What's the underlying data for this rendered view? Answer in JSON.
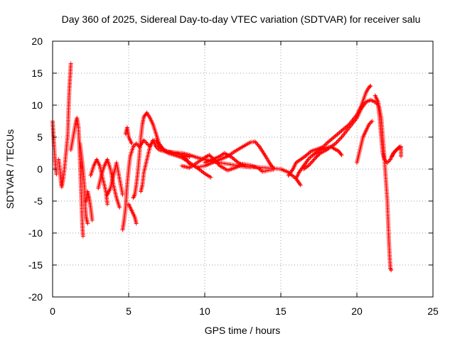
{
  "chart_data": {
    "type": "scatter",
    "title": "Day 360 of 2025, Sidereal Day-to-day VTEC variation (SDTVAR) for receiver salu",
    "xlabel": "GPS time / hours",
    "ylabel": "SDTVAR / TECUs",
    "xlim": [
      0,
      25
    ],
    "ylim": [
      -20,
      20
    ],
    "xticks": [
      0,
      5,
      10,
      15,
      20,
      25
    ],
    "yticks": [
      -20,
      -15,
      -10,
      -5,
      0,
      5,
      10,
      15,
      20
    ],
    "grid": true,
    "marker": "+",
    "series": [
      {
        "name": "SDTVAR",
        "color": "#ff0000",
        "tracks": [
          [
            [
              0.0,
              7.5
            ],
            [
              0.05,
              5.5
            ],
            [
              0.1,
              3.5
            ],
            [
              0.15,
              1.8
            ],
            [
              0.2,
              0.5
            ],
            [
              0.25,
              -0.8
            ]
          ],
          [
            [
              0.4,
              1.5
            ],
            [
              0.5,
              -0.5
            ],
            [
              0.55,
              -2.0
            ],
            [
              0.6,
              -2.8
            ],
            [
              0.7,
              -1.5
            ],
            [
              0.8,
              0.5
            ],
            [
              0.9,
              3.0
            ],
            [
              1.0,
              5.5
            ],
            [
              1.05,
              9.5
            ],
            [
              1.1,
              12.5
            ],
            [
              1.15,
              14.5
            ],
            [
              1.2,
              16.5
            ]
          ],
          [
            [
              1.2,
              3.0
            ],
            [
              1.35,
              5.0
            ],
            [
              1.5,
              7.0
            ],
            [
              1.6,
              8.0
            ],
            [
              1.7,
              6.5
            ],
            [
              1.75,
              4.0
            ],
            [
              1.8,
              1.5
            ],
            [
              1.85,
              -2.0
            ],
            [
              1.9,
              -5.0
            ],
            [
              1.95,
              -8.5
            ],
            [
              2.0,
              -10.5
            ]
          ],
          [
            [
              1.8,
              4.0
            ],
            [
              1.9,
              2.0
            ],
            [
              2.0,
              0.0
            ],
            [
              2.1,
              -3.0
            ],
            [
              2.15,
              -6.0
            ],
            [
              2.2,
              -7.5
            ],
            [
              2.3,
              -8.5
            ]
          ],
          [
            [
              2.2,
              -5.0
            ],
            [
              2.3,
              -3.5
            ],
            [
              2.4,
              -4.5
            ],
            [
              2.5,
              -6.0
            ],
            [
              2.6,
              -8.0
            ]
          ],
          [
            [
              2.5,
              -1.0
            ],
            [
              2.7,
              0.5
            ],
            [
              2.9,
              1.5
            ],
            [
              3.1,
              0.5
            ],
            [
              3.3,
              -1.5
            ],
            [
              3.5,
              -3.5
            ],
            [
              3.6,
              -5.5
            ]
          ],
          [
            [
              3.0,
              -3.0
            ],
            [
              3.2,
              -1.0
            ],
            [
              3.4,
              0.5
            ],
            [
              3.6,
              1.5
            ],
            [
              3.8,
              0.0
            ],
            [
              4.0,
              -2.5
            ],
            [
              4.2,
              -4.5
            ],
            [
              4.4,
              -6.0
            ]
          ],
          [
            [
              3.6,
              -4.0
            ],
            [
              3.8,
              -3.0
            ],
            [
              4.0,
              -1.0
            ],
            [
              4.2,
              1.0
            ],
            [
              4.4,
              -1.5
            ],
            [
              4.6,
              -4.0
            ]
          ],
          [
            [
              4.6,
              -9.5
            ],
            [
              4.7,
              -8.0
            ],
            [
              4.8,
              -6.0
            ],
            [
              4.85,
              -4.0
            ],
            [
              4.9,
              -2.5
            ],
            [
              5.0,
              0.0
            ],
            [
              5.1,
              2.0
            ],
            [
              5.3,
              3.5
            ],
            [
              5.5,
              4.0
            ],
            [
              5.7,
              3.5
            ],
            [
              6.0,
              4.5
            ],
            [
              6.2,
              4.0
            ],
            [
              6.4,
              3.5
            ],
            [
              6.6,
              4.5
            ],
            [
              6.8,
              3.5
            ],
            [
              7.0,
              3.0
            ],
            [
              7.5,
              2.7
            ],
            [
              8.0,
              2.6
            ],
            [
              8.5,
              2.5
            ],
            [
              9.0,
              2.2
            ],
            [
              9.5,
              1.8
            ],
            [
              10.0,
              1.5
            ],
            [
              10.5,
              1.2
            ],
            [
              11.0,
              1.0
            ],
            [
              11.5,
              0.8
            ],
            [
              12.0,
              0.6
            ],
            [
              12.5,
              0.4
            ],
            [
              13.0,
              0.3
            ],
            [
              13.5,
              0.3
            ],
            [
              14.0,
              0.2
            ],
            [
              14.5,
              0.1
            ],
            [
              15.0,
              0.0
            ],
            [
              15.5,
              -0.5
            ],
            [
              16.0,
              -1.5
            ],
            [
              16.3,
              -2.5
            ]
          ],
          [
            [
              4.8,
              5.5
            ],
            [
              4.9,
              6.5
            ],
            [
              5.0,
              5.0
            ],
            [
              5.2,
              4.0
            ]
          ],
          [
            [
              5.3,
              -4.5
            ],
            [
              5.4,
              -4.0
            ],
            [
              5.5,
              -2.5
            ],
            [
              5.6,
              -0.5
            ],
            [
              5.7,
              2.0
            ],
            [
              5.8,
              5.0
            ],
            [
              5.9,
              7.0
            ],
            [
              6.0,
              8.2
            ],
            [
              6.2,
              8.8
            ],
            [
              6.4,
              8.0
            ],
            [
              6.6,
              7.0
            ],
            [
              6.8,
              5.5
            ],
            [
              7.0,
              4.0
            ],
            [
              7.3,
              3.0
            ],
            [
              7.6,
              2.5
            ],
            [
              8.0,
              2.2
            ],
            [
              8.5,
              1.8
            ],
            [
              9.0,
              1.0
            ],
            [
              9.5,
              0.2
            ],
            [
              10.0,
              -0.7
            ],
            [
              10.4,
              -1.3
            ]
          ],
          [
            [
              5.0,
              -5.5
            ],
            [
              5.2,
              -6.5
            ],
            [
              5.4,
              -7.5
            ],
            [
              5.5,
              -8.5
            ]
          ],
          [
            [
              5.8,
              -3.5
            ],
            [
              5.9,
              -2.5
            ],
            [
              6.0,
              -0.5
            ],
            [
              6.2,
              1.5
            ],
            [
              6.4,
              3.5
            ],
            [
              6.6,
              4.5
            ],
            [
              6.8,
              4.5
            ],
            [
              7.0,
              3.5
            ],
            [
              7.5,
              2.8
            ],
            [
              8.0,
              2.5
            ],
            [
              8.5,
              2.2
            ],
            [
              9.0,
              1.9
            ]
          ],
          [
            [
              8.5,
              2.0
            ],
            [
              8.8,
              1.5
            ],
            [
              9.0,
              0.8
            ],
            [
              9.5,
              0.3
            ],
            [
              10.0,
              0.5
            ],
            [
              10.5,
              1.0
            ],
            [
              11.0,
              1.5
            ],
            [
              11.5,
              2.0
            ],
            [
              12.0,
              2.8
            ],
            [
              12.5,
              3.5
            ],
            [
              13.0,
              4.2
            ],
            [
              13.3,
              4.3
            ],
            [
              13.6,
              3.5
            ],
            [
              14.0,
              2.0
            ],
            [
              14.3,
              0.8
            ],
            [
              14.5,
              0.2
            ]
          ],
          [
            [
              8.5,
              0.5
            ],
            [
              9.0,
              0.2
            ],
            [
              9.5,
              1.0
            ],
            [
              10.0,
              1.8
            ],
            [
              10.3,
              2.2
            ],
            [
              10.6,
              1.5
            ],
            [
              11.0,
              0.5
            ],
            [
              11.5,
              -0.2
            ],
            [
              12.0,
              0.2
            ],
            [
              12.5,
              0.8
            ],
            [
              13.0,
              0.6
            ],
            [
              13.5,
              0.2
            ],
            [
              13.8,
              -0.4
            ],
            [
              14.2,
              -0.2
            ],
            [
              14.5,
              -0.1
            ]
          ],
          [
            [
              10.0,
              1.0
            ],
            [
              10.5,
              1.5
            ],
            [
              11.0,
              2.0
            ],
            [
              11.3,
              2.5
            ],
            [
              11.8,
              1.8
            ],
            [
              12.2,
              1.0
            ],
            [
              12.6,
              0.5
            ],
            [
              13.0,
              0.3
            ]
          ],
          [
            [
              15.5,
              -1.0
            ],
            [
              15.8,
              0.0
            ],
            [
              16.0,
              1.0
            ],
            [
              16.3,
              1.5
            ],
            [
              16.6,
              2.0
            ],
            [
              17.0,
              2.8
            ],
            [
              17.5,
              3.2
            ],
            [
              17.8,
              3.5
            ],
            [
              18.0,
              4.0
            ],
            [
              18.5,
              5.0
            ],
            [
              19.0,
              6.0
            ],
            [
              19.5,
              7.0
            ],
            [
              20.0,
              8.5
            ],
            [
              20.3,
              10.0
            ],
            [
              20.6,
              12.0
            ],
            [
              20.8,
              12.8
            ],
            [
              20.9,
              13.0
            ]
          ],
          [
            [
              16.0,
              -1.5
            ],
            [
              16.2,
              -0.5
            ],
            [
              16.5,
              0.5
            ],
            [
              16.8,
              1.5
            ],
            [
              17.0,
              2.0
            ],
            [
              17.3,
              2.5
            ],
            [
              17.6,
              3.0
            ],
            [
              18.0,
              3.3
            ],
            [
              18.3,
              3.5
            ],
            [
              18.5,
              3.2
            ],
            [
              18.8,
              2.8
            ],
            [
              19.0,
              2.2
            ]
          ],
          [
            [
              16.5,
              0.0
            ],
            [
              16.8,
              0.5
            ],
            [
              17.0,
              1.0
            ],
            [
              17.3,
              1.8
            ],
            [
              17.6,
              2.5
            ],
            [
              18.0,
              3.0
            ],
            [
              18.3,
              3.5
            ],
            [
              18.6,
              4.0
            ],
            [
              19.0,
              5.0
            ],
            [
              19.5,
              6.5
            ],
            [
              20.0,
              8.0
            ],
            [
              20.3,
              9.5
            ],
            [
              20.6,
              10.5
            ],
            [
              20.9,
              10.8
            ],
            [
              21.2,
              10.5
            ],
            [
              21.4,
              10.0
            ],
            [
              21.5,
              8.0
            ],
            [
              21.6,
              5.0
            ],
            [
              21.7,
              2.5
            ],
            [
              21.8,
              1.5
            ],
            [
              22.0,
              1.0
            ],
            [
              22.2,
              1.5
            ],
            [
              22.4,
              2.5
            ],
            [
              22.6,
              3.0
            ],
            [
              22.8,
              3.5
            ]
          ],
          [
            [
              20.0,
              1.0
            ],
            [
              20.2,
              3.0
            ],
            [
              20.4,
              5.0
            ],
            [
              20.6,
              6.0
            ],
            [
              20.8,
              7.0
            ],
            [
              21.0,
              7.5
            ]
          ],
          [
            [
              21.2,
              11.5
            ],
            [
              21.4,
              10.5
            ],
            [
              21.6,
              8.0
            ],
            [
              21.7,
              5.0
            ],
            [
              21.8,
              2.0
            ],
            [
              21.9,
              -1.5
            ],
            [
              22.0,
              -5.0
            ],
            [
              22.05,
              -8.0
            ],
            [
              22.1,
              -11.0
            ],
            [
              22.15,
              -13.5
            ],
            [
              22.2,
              -15.5
            ],
            [
              22.25,
              -15.8
            ]
          ],
          [
            [
              22.3,
              2.0
            ],
            [
              22.5,
              2.8
            ],
            [
              22.7,
              3.2
            ],
            [
              22.9,
              3.5
            ],
            [
              22.9,
              2.0
            ]
          ]
        ]
      }
    ]
  }
}
